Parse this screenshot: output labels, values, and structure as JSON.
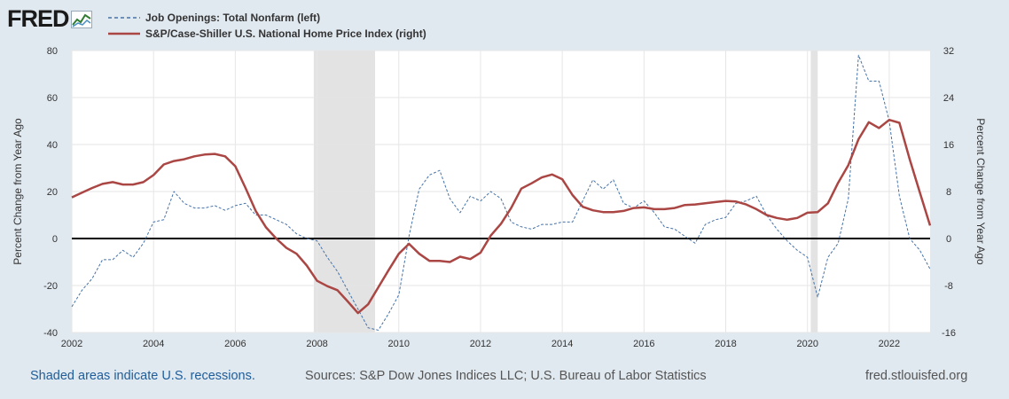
{
  "header": {
    "logo_text": "FRED",
    "legend": [
      {
        "label": "Job Openings: Total Nonfarm (left)",
        "color": "#4572a7",
        "style": "dashed"
      },
      {
        "label": "S&P/Case-Shiller U.S. National Home Price Index (right)",
        "color": "#aa4643",
        "style": "solid"
      }
    ]
  },
  "footer": {
    "recession_note": "Shaded areas indicate U.S. recessions.",
    "sources": "Sources: S&P Dow Jones Indices LLC; U.S. Bureau of Labor Statistics",
    "site": "fred.stlouisfed.org"
  },
  "chart_data": {
    "type": "line",
    "xlim": [
      2002.0,
      2023.0
    ],
    "x_ticks": [
      "2002",
      "2004",
      "2006",
      "2008",
      "2010",
      "2012",
      "2014",
      "2016",
      "2018",
      "2020",
      "2022"
    ],
    "y_left": {
      "label": "Percent Change from Year Ago",
      "lim": [
        -40,
        80
      ],
      "ticks": [
        "80",
        "60",
        "40",
        "20",
        "0",
        "-20",
        "-40"
      ]
    },
    "y_right": {
      "label": "Percent Change from Year Ago",
      "lim": [
        -16,
        32
      ],
      "ticks": [
        "32",
        "24",
        "16",
        "8",
        "0",
        "-8",
        "-16"
      ]
    },
    "recessions": [
      [
        2007.92,
        2009.42
      ],
      [
        2020.08,
        2020.25
      ]
    ],
    "grid": true,
    "legend_position": "top-left",
    "series": [
      {
        "name": "Job Openings: Total Nonfarm (left)",
        "axis": "left",
        "color": "#4572a7",
        "style": "dashed",
        "points": [
          [
            2002.0,
            -29
          ],
          [
            2002.25,
            -22
          ],
          [
            2002.5,
            -17
          ],
          [
            2002.75,
            -9
          ],
          [
            2003.0,
            -9
          ],
          [
            2003.25,
            -5
          ],
          [
            2003.5,
            -8
          ],
          [
            2003.75,
            -2
          ],
          [
            2004.0,
            7
          ],
          [
            2004.25,
            8
          ],
          [
            2004.5,
            20
          ],
          [
            2004.75,
            15
          ],
          [
            2005.0,
            13
          ],
          [
            2005.25,
            13
          ],
          [
            2005.5,
            14
          ],
          [
            2005.75,
            12
          ],
          [
            2006.0,
            14
          ],
          [
            2006.25,
            15
          ],
          [
            2006.5,
            10
          ],
          [
            2006.75,
            10
          ],
          [
            2007.0,
            8
          ],
          [
            2007.25,
            6
          ],
          [
            2007.5,
            2
          ],
          [
            2007.75,
            0
          ],
          [
            2008.0,
            -1
          ],
          [
            2008.25,
            -8
          ],
          [
            2008.5,
            -14
          ],
          [
            2008.75,
            -22
          ],
          [
            2009.0,
            -30
          ],
          [
            2009.25,
            -38
          ],
          [
            2009.5,
            -39
          ],
          [
            2009.75,
            -32
          ],
          [
            2010.0,
            -24
          ],
          [
            2010.25,
            1
          ],
          [
            2010.5,
            21
          ],
          [
            2010.75,
            27
          ],
          [
            2011.0,
            29
          ],
          [
            2011.25,
            17
          ],
          [
            2011.5,
            11
          ],
          [
            2011.75,
            18
          ],
          [
            2012.0,
            16
          ],
          [
            2012.25,
            20
          ],
          [
            2012.5,
            17
          ],
          [
            2012.75,
            7
          ],
          [
            2013.0,
            5
          ],
          [
            2013.25,
            4
          ],
          [
            2013.5,
            6
          ],
          [
            2013.75,
            6
          ],
          [
            2014.0,
            7
          ],
          [
            2014.25,
            7
          ],
          [
            2014.5,
            16
          ],
          [
            2014.75,
            25
          ],
          [
            2015.0,
            21
          ],
          [
            2015.25,
            25
          ],
          [
            2015.5,
            15
          ],
          [
            2015.75,
            13
          ],
          [
            2016.0,
            16
          ],
          [
            2016.25,
            11
          ],
          [
            2016.5,
            5
          ],
          [
            2016.75,
            4
          ],
          [
            2017.0,
            1
          ],
          [
            2017.25,
            -2
          ],
          [
            2017.5,
            6
          ],
          [
            2017.75,
            8
          ],
          [
            2018.0,
            9
          ],
          [
            2018.25,
            15
          ],
          [
            2018.5,
            16
          ],
          [
            2018.75,
            18
          ],
          [
            2019.0,
            10
          ],
          [
            2019.25,
            4
          ],
          [
            2019.5,
            -1
          ],
          [
            2019.75,
            -5
          ],
          [
            2020.0,
            -8
          ],
          [
            2020.25,
            -25
          ],
          [
            2020.5,
            -8
          ],
          [
            2020.75,
            -2
          ],
          [
            2021.0,
            17
          ],
          [
            2021.25,
            78
          ],
          [
            2021.5,
            67
          ],
          [
            2021.75,
            67
          ],
          [
            2022.0,
            50
          ],
          [
            2022.25,
            18
          ],
          [
            2022.5,
            0
          ],
          [
            2022.75,
            -5
          ],
          [
            2023.0,
            -13
          ]
        ]
      },
      {
        "name": "S&P/Case-Shiller U.S. National Home Price Index (right)",
        "axis": "right",
        "color": "#aa4643",
        "style": "solid",
        "points": [
          [
            2002.0,
            7.0
          ],
          [
            2002.25,
            7.8
          ],
          [
            2002.5,
            8.6
          ],
          [
            2002.75,
            9.3
          ],
          [
            2003.0,
            9.6
          ],
          [
            2003.25,
            9.2
          ],
          [
            2003.5,
            9.2
          ],
          [
            2003.75,
            9.6
          ],
          [
            2004.0,
            10.8
          ],
          [
            2004.25,
            12.6
          ],
          [
            2004.5,
            13.2
          ],
          [
            2004.75,
            13.5
          ],
          [
            2005.0,
            14.0
          ],
          [
            2005.25,
            14.3
          ],
          [
            2005.5,
            14.4
          ],
          [
            2005.75,
            14.0
          ],
          [
            2006.0,
            12.3
          ],
          [
            2006.25,
            8.6
          ],
          [
            2006.5,
            4.7
          ],
          [
            2006.75,
            1.9
          ],
          [
            2007.0,
            0.0
          ],
          [
            2007.25,
            -1.6
          ],
          [
            2007.5,
            -2.6
          ],
          [
            2007.75,
            -4.6
          ],
          [
            2008.0,
            -7.2
          ],
          [
            2008.25,
            -8.1
          ],
          [
            2008.5,
            -8.8
          ],
          [
            2008.75,
            -10.7
          ],
          [
            2009.0,
            -12.7
          ],
          [
            2009.25,
            -11.2
          ],
          [
            2009.5,
            -8.3
          ],
          [
            2009.75,
            -5.4
          ],
          [
            2010.0,
            -2.6
          ],
          [
            2010.25,
            -0.9
          ],
          [
            2010.5,
            -2.6
          ],
          [
            2010.75,
            -3.8
          ],
          [
            2011.0,
            -3.8
          ],
          [
            2011.25,
            -4.0
          ],
          [
            2011.5,
            -3.1
          ],
          [
            2011.75,
            -3.5
          ],
          [
            2012.0,
            -2.4
          ],
          [
            2012.25,
            0.5
          ],
          [
            2012.5,
            2.5
          ],
          [
            2012.75,
            5.2
          ],
          [
            2013.0,
            8.5
          ],
          [
            2013.25,
            9.4
          ],
          [
            2013.5,
            10.4
          ],
          [
            2013.75,
            10.9
          ],
          [
            2014.0,
            10.1
          ],
          [
            2014.25,
            7.4
          ],
          [
            2014.5,
            5.4
          ],
          [
            2014.75,
            4.8
          ],
          [
            2015.0,
            4.5
          ],
          [
            2015.25,
            4.5
          ],
          [
            2015.5,
            4.7
          ],
          [
            2015.75,
            5.2
          ],
          [
            2016.0,
            5.3
          ],
          [
            2016.25,
            5.0
          ],
          [
            2016.5,
            5.0
          ],
          [
            2016.75,
            5.2
          ],
          [
            2017.0,
            5.7
          ],
          [
            2017.25,
            5.8
          ],
          [
            2017.5,
            6.0
          ],
          [
            2017.75,
            6.2
          ],
          [
            2018.0,
            6.4
          ],
          [
            2018.25,
            6.3
          ],
          [
            2018.5,
            5.8
          ],
          [
            2018.75,
            5.0
          ],
          [
            2019.0,
            4.0
          ],
          [
            2019.25,
            3.5
          ],
          [
            2019.5,
            3.2
          ],
          [
            2019.75,
            3.5
          ],
          [
            2020.0,
            4.4
          ],
          [
            2020.25,
            4.5
          ],
          [
            2020.5,
            6.0
          ],
          [
            2020.75,
            9.5
          ],
          [
            2021.0,
            12.5
          ],
          [
            2021.25,
            16.9
          ],
          [
            2021.5,
            19.8
          ],
          [
            2021.75,
            18.8
          ],
          [
            2022.0,
            20.2
          ],
          [
            2022.25,
            19.7
          ],
          [
            2022.5,
            13.5
          ],
          [
            2022.75,
            7.8
          ],
          [
            2023.0,
            2.2
          ]
        ]
      }
    ]
  }
}
